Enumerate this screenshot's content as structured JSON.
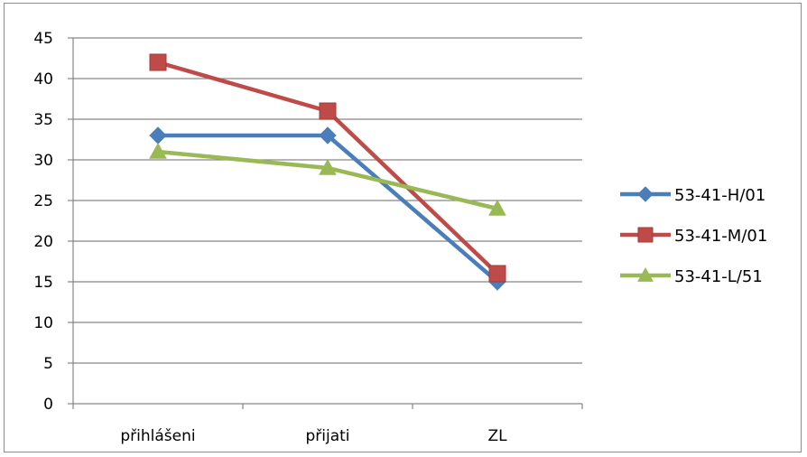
{
  "chart_data": {
    "type": "line",
    "categories": [
      "přihlášeni",
      "přijati",
      "ZL"
    ],
    "series": [
      {
        "name": "53-41-H/01",
        "values": [
          33,
          33,
          15
        ],
        "color": "#4a7ebb",
        "marker": "diamond"
      },
      {
        "name": "53-41-M/01",
        "values": [
          42,
          36,
          16
        ],
        "color": "#be4b48",
        "marker": "square"
      },
      {
        "name": "53-41-L/51",
        "values": [
          31,
          29,
          24
        ],
        "color": "#98b954",
        "marker": "triangle"
      }
    ],
    "ylim": [
      0,
      45
    ],
    "yticks": [
      0,
      5,
      10,
      15,
      20,
      25,
      30,
      35,
      40,
      45
    ],
    "grid": true,
    "legend": "right",
    "title": "",
    "xlabel": "",
    "ylabel": ""
  }
}
